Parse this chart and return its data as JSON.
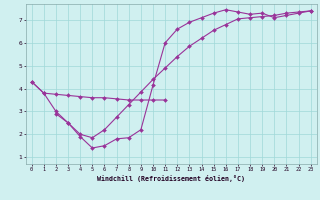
{
  "xlabel": "Windchill (Refroidissement éolien,°C)",
  "xlim": [
    -0.5,
    23.5
  ],
  "ylim": [
    0.7,
    7.7
  ],
  "xticks": [
    0,
    1,
    2,
    3,
    4,
    5,
    6,
    7,
    8,
    9,
    10,
    11,
    12,
    13,
    14,
    15,
    16,
    17,
    18,
    19,
    20,
    21,
    22,
    23
  ],
  "yticks": [
    1,
    2,
    3,
    4,
    5,
    6,
    7
  ],
  "background_color": "#d0f0f0",
  "line_color": "#993399",
  "grid_color": "#a0d8d8",
  "line1_x": [
    0,
    1,
    2,
    3,
    4,
    5,
    6,
    7,
    8,
    9,
    10,
    11
  ],
  "line1_y": [
    4.3,
    3.8,
    3.75,
    3.7,
    3.65,
    3.6,
    3.6,
    3.55,
    3.5,
    3.5,
    3.5,
    3.5
  ],
  "line2_x": [
    2,
    3,
    4,
    5,
    6,
    7,
    8,
    9,
    10,
    11,
    12,
    13,
    14,
    15,
    16,
    17,
    18,
    19,
    20,
    21,
    22,
    23
  ],
  "line2_y": [
    2.9,
    2.5,
    1.9,
    1.4,
    1.5,
    1.8,
    1.85,
    2.2,
    4.15,
    6.0,
    6.6,
    6.9,
    7.1,
    7.3,
    7.45,
    7.35,
    7.25,
    7.3,
    7.1,
    7.2,
    7.3,
    7.4
  ],
  "line3_x": [
    0,
    1,
    2,
    3,
    4,
    5,
    6,
    7,
    8,
    9,
    10,
    11,
    12,
    13,
    14,
    15,
    16,
    17,
    18,
    19,
    20,
    21,
    22,
    23
  ],
  "line3_y": [
    4.3,
    3.8,
    3.0,
    2.5,
    2.0,
    1.85,
    2.2,
    2.75,
    3.3,
    3.85,
    4.4,
    4.9,
    5.4,
    5.85,
    6.2,
    6.55,
    6.8,
    7.05,
    7.1,
    7.15,
    7.2,
    7.3,
    7.35,
    7.4
  ]
}
